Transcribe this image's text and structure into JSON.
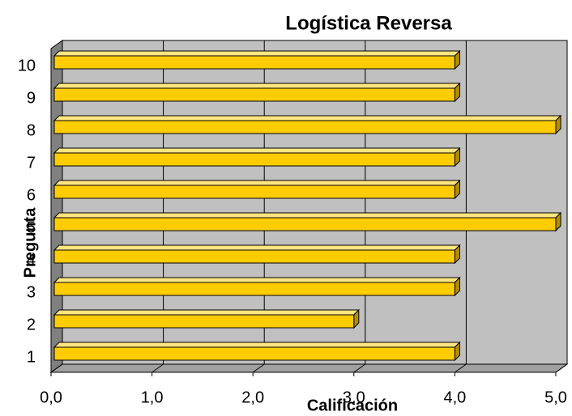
{
  "chart_data": {
    "type": "bar",
    "orientation": "horizontal",
    "title": "Logística Reversa",
    "x_label": "Calificación",
    "y_label": "Pregunta",
    "categories": [
      "1",
      "2",
      "3",
      "4",
      "5",
      "6",
      "7",
      "8",
      "9",
      "10"
    ],
    "values": [
      4,
      3,
      4,
      4,
      5,
      4,
      4,
      5,
      4,
      4
    ],
    "color": "#ffcc00",
    "xlim": [
      0,
      5
    ],
    "xticks": [
      {
        "value": 0,
        "label": "0,0"
      },
      {
        "value": 1,
        "label": "1,0"
      },
      {
        "value": 2,
        "label": "2,0"
      },
      {
        "value": 3,
        "label": "3,0"
      },
      {
        "value": 4,
        "label": "4,0"
      },
      {
        "value": 5,
        "label": "5,0"
      }
    ],
    "grid": true
  }
}
